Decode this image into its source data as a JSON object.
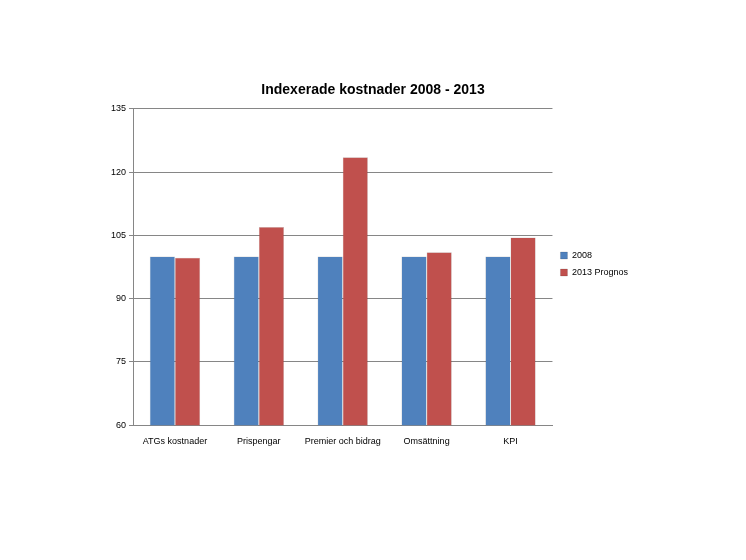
{
  "chart_data": {
    "type": "bar",
    "title": "Indexerade kostnader 2008 - 2013",
    "categories": [
      "ATGs kostnader",
      "Prispengar",
      "Premier och bidrag",
      "Omsättning",
      "KPI"
    ],
    "series": [
      {
        "name": "2008",
        "color": "#4f81bd",
        "values": [
          100,
          100,
          100,
          100,
          100
        ]
      },
      {
        "name": "2013 Prognos",
        "color": "#c0504d",
        "values": [
          99.7,
          107,
          123.5,
          101,
          104.5
        ]
      }
    ],
    "ylim": [
      60,
      135
    ],
    "yticks": [
      60,
      75,
      90,
      105,
      120,
      135
    ],
    "grid": true,
    "legend": "right"
  }
}
